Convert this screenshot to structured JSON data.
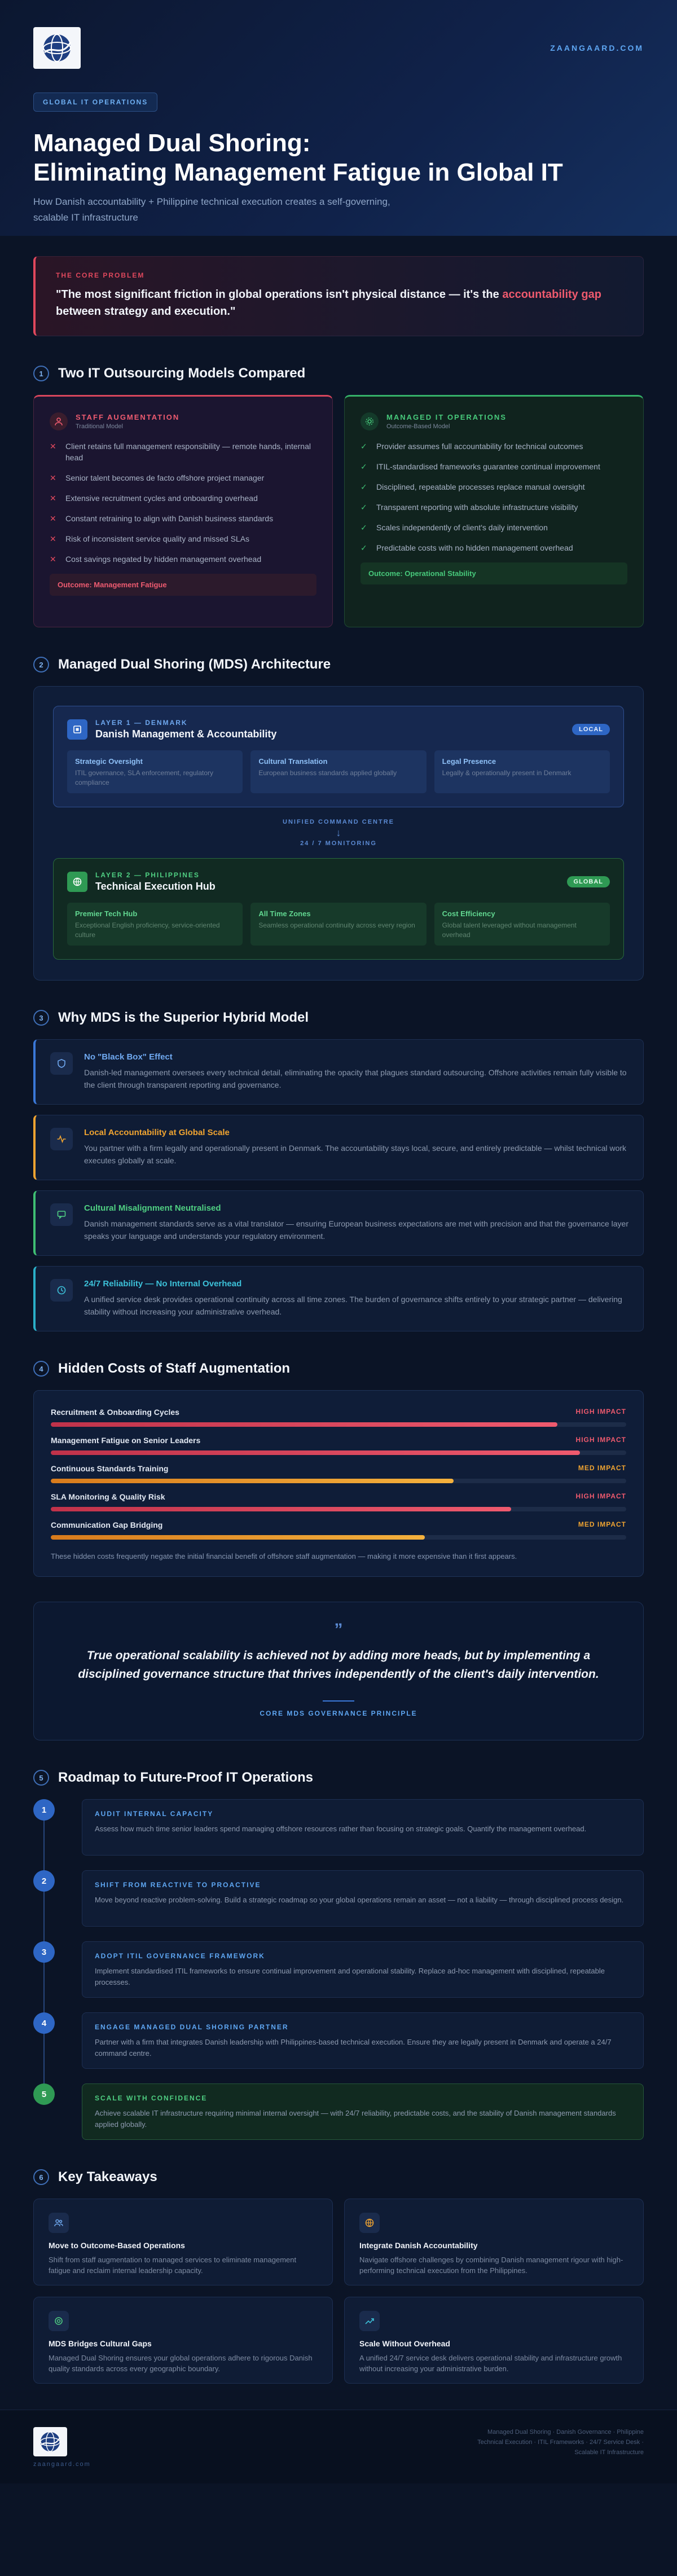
{
  "brand": {
    "site": "ZAANGAARD.COM"
  },
  "hero": {
    "pill": "GLOBAL IT OPERATIONS",
    "title_line1": "Managed Dual Shoring:",
    "title_line2": "Eliminating Management Fatigue in Global IT",
    "subtitle": "How Danish accountability + Philippine technical execution creates a self-governing, scalable IT infrastructure"
  },
  "problem": {
    "label": "THE CORE PROBLEM",
    "quote_before": "\"The most significant friction in global operations isn't physical distance — it's the ",
    "quote_highlight": "accountability gap",
    "quote_after": " between strategy and execution.\""
  },
  "sections": {
    "s1": {
      "num": "1",
      "title": "Two IT Outsourcing Models Compared"
    },
    "s2": {
      "num": "2",
      "title": "Managed Dual Shoring (MDS) Architecture"
    },
    "s3": {
      "num": "3",
      "title": "Why MDS is the Superior Hybrid Model"
    },
    "s4": {
      "num": "4",
      "title": "Hidden Costs of Staff Augmentation"
    },
    "s5": {
      "num": "5",
      "title": "Roadmap to Future-Proof IT Operations"
    },
    "s6": {
      "num": "6",
      "title": "Key Takeaways"
    }
  },
  "models": {
    "staff": {
      "name": "STAFF AUGMENTATION",
      "sub": "Traditional Model",
      "items": [
        "Client retains full management responsibility — remote hands, internal head",
        "Senior talent becomes de facto offshore project manager",
        "Extensive recruitment cycles and onboarding overhead",
        "Constant retraining to align with Danish business standards",
        "Risk of inconsistent service quality and missed SLAs",
        "Cost savings negated by hidden management overhead"
      ],
      "outcome": "Outcome: Management Fatigue"
    },
    "managed": {
      "name": "MANAGED IT OPERATIONS",
      "sub": "Outcome-Based Model",
      "items": [
        "Provider assumes full accountability for technical outcomes",
        "ITIL-standardised frameworks guarantee continual improvement",
        "Disciplined, repeatable processes replace manual oversight",
        "Transparent reporting with absolute infrastructure visibility",
        "Scales independently of client's daily intervention",
        "Predictable costs with no hidden management overhead"
      ],
      "outcome": "Outcome: Operational Stability"
    }
  },
  "architecture": {
    "denmark": {
      "kicker": "LAYER 1 — DENMARK",
      "title": "Danish Management & Accountability",
      "badge": "LOCAL",
      "cols": [
        {
          "title": "Strategic Oversight",
          "desc": "ITIL governance, SLA enforcement, regulatory compliance"
        },
        {
          "title": "Cultural Translation",
          "desc": "European business standards applied globally"
        },
        {
          "title": "Legal Presence",
          "desc": "Legally & operationally present in Denmark"
        }
      ]
    },
    "bridge_title": "UNIFIED COMMAND CENTRE",
    "bridge_arrow": "↓",
    "bridge_sub": "24 / 7 MONITORING",
    "philippines": {
      "kicker": "LAYER 2 — PHILIPPINES",
      "title": "Technical Execution Hub",
      "badge": "GLOBAL",
      "cols": [
        {
          "title": "Premier Tech Hub",
          "desc": "Exceptional English proficiency, service-oriented culture"
        },
        {
          "title": "All Time Zones",
          "desc": "Seamless operational continuity across every region"
        },
        {
          "title": "Cost Efficiency",
          "desc": "Global talent leveraged without management overhead"
        }
      ]
    }
  },
  "why": [
    {
      "title": "No \"Black Box\" Effect",
      "desc": "Danish-led management oversees every technical detail, eliminating the opacity that plagues standard outsourcing. Offshore activities remain fully visible to the client through transparent reporting and governance."
    },
    {
      "title": "Local Accountability at Global Scale",
      "desc": "You partner with a firm legally and operationally present in Denmark. The accountability stays local, secure, and entirely predictable — whilst technical work executes globally at scale."
    },
    {
      "title": "Cultural Misalignment Neutralised",
      "desc": "Danish management standards serve as a vital translator — ensuring European business expectations are met with precision and that the governance layer speaks your language and understands your regulatory environment."
    },
    {
      "title": "24/7 Reliability — No Internal Overhead",
      "desc": "A unified service desk provides operational continuity across all time zones. The burden of governance shifts entirely to your strategic partner — delivering stability without increasing your administrative overhead."
    }
  ],
  "costs": {
    "items": [
      {
        "label": "Recruitment & Onboarding Cycles",
        "impact": "HIGH IMPACT",
        "level": 0.88
      },
      {
        "label": "Management Fatigue on Senior Leaders",
        "impact": "HIGH IMPACT",
        "level": 0.92
      },
      {
        "label": "Continuous Standards Training",
        "impact": "MED IMPACT",
        "level": 0.7
      },
      {
        "label": "SLA Monitoring & Quality Risk",
        "impact": "HIGH IMPACT",
        "level": 0.8
      },
      {
        "label": "Communication Gap Bridging",
        "impact": "MED IMPACT",
        "level": 0.65
      }
    ],
    "note": "These hidden costs frequently negate the initial financial benefit of offshore staff augmentation — making it more expensive than it first appears."
  },
  "principle": {
    "quote_mark": "”",
    "text": "True operational scalability is achieved not by adding more heads, but by implementing a disciplined governance structure that thrives independently of the client's daily intervention.",
    "label": "CORE MDS GOVERNANCE PRINCIPLE"
  },
  "roadmap": [
    {
      "num": "1",
      "title": "AUDIT INTERNAL CAPACITY",
      "desc": "Assess how much time senior leaders spend managing offshore resources rather than focusing on strategic goals. Quantify the management overhead."
    },
    {
      "num": "2",
      "title": "SHIFT FROM REACTIVE TO PROACTIVE",
      "desc": "Move beyond reactive problem-solving. Build a strategic roadmap so your global operations remain an asset — not a liability — through disciplined process design."
    },
    {
      "num": "3",
      "title": "ADOPT ITIL GOVERNANCE FRAMEWORK",
      "desc": "Implement standardised ITIL frameworks to ensure continual improvement and operational stability. Replace ad-hoc management with disciplined, repeatable processes."
    },
    {
      "num": "4",
      "title": "ENGAGE MANAGED DUAL SHORING PARTNER",
      "desc": "Partner with a firm that integrates Danish leadership with Philippines-based technical execution. Ensure they are legally present in Denmark and operate a 24/7 command centre."
    },
    {
      "num": "5",
      "title": "SCALE WITH CONFIDENCE",
      "desc": "Achieve scalable IT infrastructure requiring minimal internal oversight — with 24/7 reliability, predictable costs, and the stability of Danish management standards applied globally."
    }
  ],
  "takeaways": [
    {
      "title": "Move to Outcome-Based Operations",
      "desc": "Shift from staff augmentation to managed services to eliminate management fatigue and reclaim internal leadership capacity."
    },
    {
      "title": "Integrate Danish Accountability",
      "desc": "Navigate offshore challenges by combining Danish management rigour with high-performing technical execution from the Philippines."
    },
    {
      "title": "MDS Bridges Cultural Gaps",
      "desc": "Managed Dual Shoring ensures your global operations adhere to rigorous Danish quality standards across every geographic boundary."
    },
    {
      "title": "Scale Without Overhead",
      "desc": "A unified 24/7 service desk delivers operational stability and infrastructure growth without increasing your administrative burden."
    }
  ],
  "footer": {
    "site": "zaangaard.com",
    "tags": "Managed Dual Shoring · Danish Governance · Philippine Technical Execution · ITIL Frameworks · 24/7 Service Desk · Scalable IT Infrastructure"
  },
  "colors": {
    "accent": "#3a78d8",
    "danger": "#e0485d",
    "success": "#3fbf73",
    "warning": "#f0a431",
    "background": "#0b1426"
  }
}
